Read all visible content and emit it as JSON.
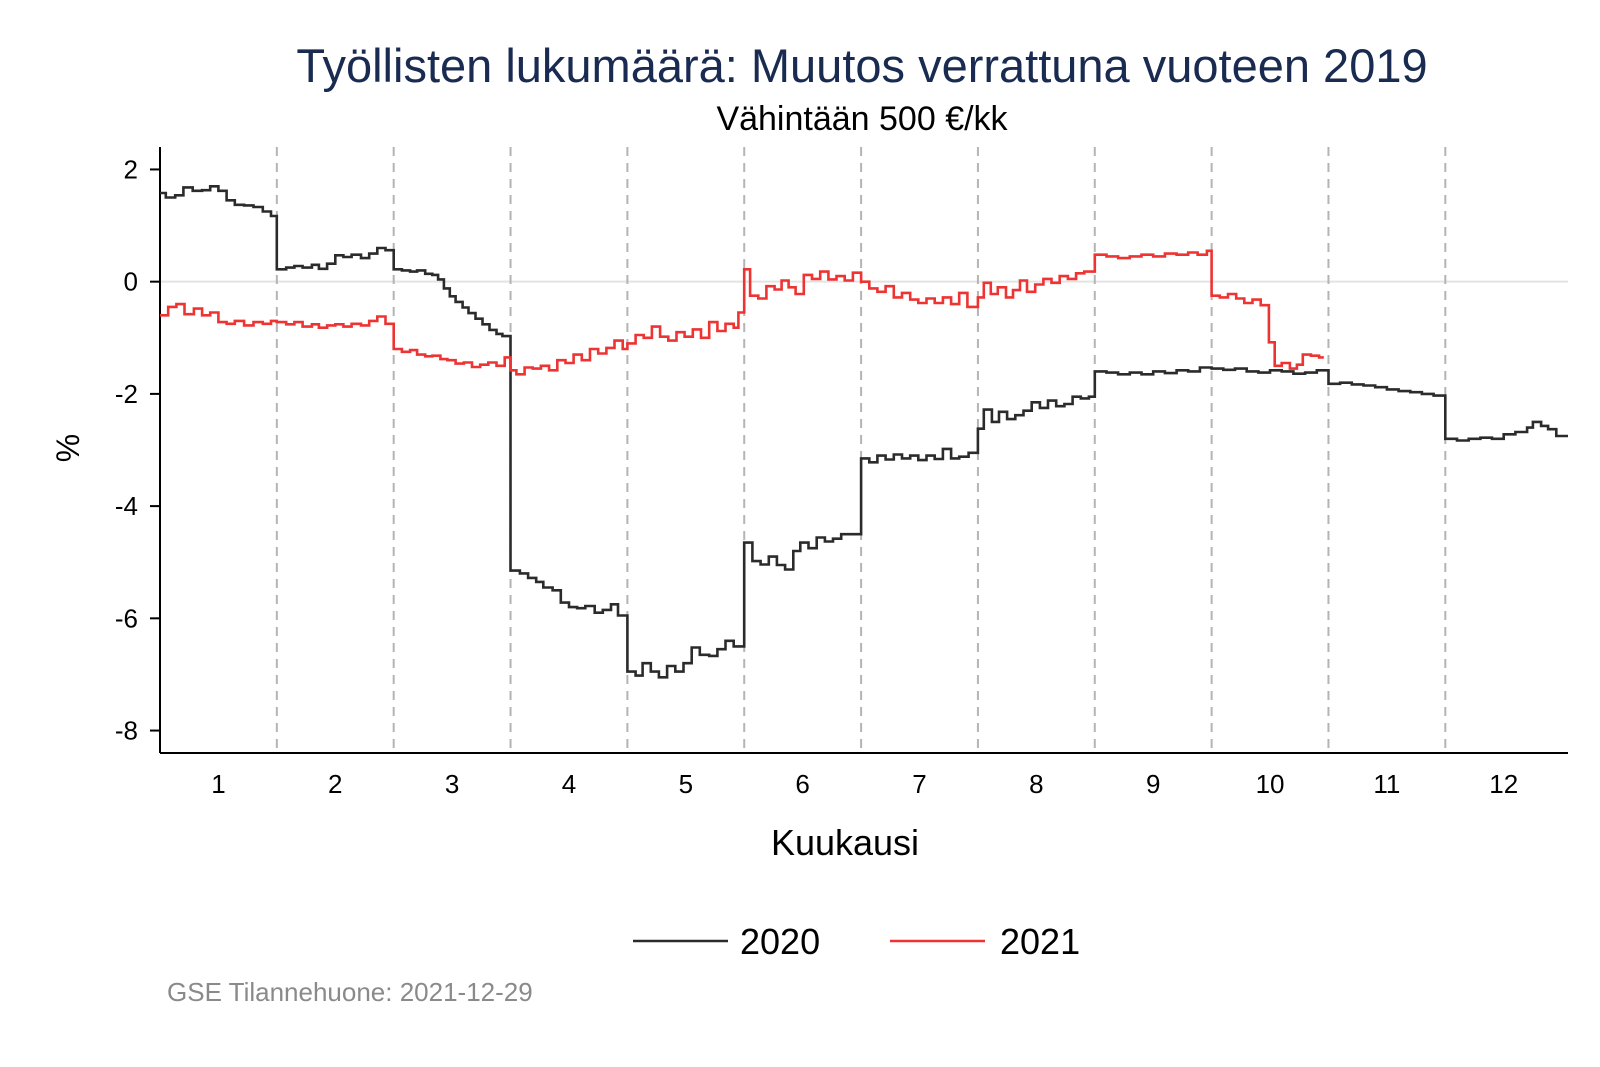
{
  "chart_data": {
    "type": "line",
    "title": "Työllisten lukumäärä: Muutos verrattuna vuoteen 2019",
    "subtitle": "Vähintään 500 €/kk",
    "xlabel": "Kuukausi",
    "ylabel": "%",
    "xlim": [
      0.5,
      12.55
    ],
    "ylim": [
      -8.4,
      2.4
    ],
    "x_ticks": [
      1,
      2,
      3,
      4,
      5,
      6,
      7,
      8,
      9,
      10,
      11,
      12
    ],
    "x_tick_labels": [
      "1",
      "2",
      "3",
      "4",
      "5",
      "6",
      "7",
      "8",
      "9",
      "10",
      "11",
      "12"
    ],
    "y_ticks": [
      2,
      0,
      -2,
      -4,
      -6,
      -8
    ],
    "y_tick_labels": [
      "2",
      "0",
      "-2",
      "-4",
      "-6",
      "-8"
    ],
    "month_separators": [
      1.5,
      2.5,
      3.5,
      4.5,
      5.5,
      6.5,
      7.5,
      8.5,
      9.5,
      10.5,
      11.5
    ],
    "zero_line": true,
    "line_style": "step",
    "legend_position": "bottom",
    "series": [
      {
        "name": "2020",
        "color": "#2b2b2b",
        "points": [
          [
            0.5,
            1.58
          ],
          [
            0.55,
            1.5
          ],
          [
            0.63,
            1.54
          ],
          [
            0.7,
            1.68
          ],
          [
            0.78,
            1.62
          ],
          [
            0.86,
            1.63
          ],
          [
            0.93,
            1.7
          ],
          [
            1.0,
            1.62
          ],
          [
            1.07,
            1.45
          ],
          [
            1.14,
            1.37
          ],
          [
            1.22,
            1.36
          ],
          [
            1.3,
            1.33
          ],
          [
            1.38,
            1.25
          ],
          [
            1.45,
            1.17
          ],
          [
            1.5,
            0.22
          ],
          [
            1.58,
            0.25
          ],
          [
            1.65,
            0.28
          ],
          [
            1.72,
            0.25
          ],
          [
            1.8,
            0.3
          ],
          [
            1.86,
            0.23
          ],
          [
            1.93,
            0.32
          ],
          [
            2.0,
            0.47
          ],
          [
            2.07,
            0.44
          ],
          [
            2.14,
            0.48
          ],
          [
            2.22,
            0.42
          ],
          [
            2.29,
            0.5
          ],
          [
            2.36,
            0.6
          ],
          [
            2.43,
            0.56
          ],
          [
            2.5,
            0.22
          ],
          [
            2.57,
            0.2
          ],
          [
            2.64,
            0.18
          ],
          [
            2.7,
            0.2
          ],
          [
            2.77,
            0.14
          ],
          [
            2.83,
            0.12
          ],
          [
            2.88,
            0.04
          ],
          [
            2.93,
            -0.12
          ],
          [
            2.98,
            -0.26
          ],
          [
            3.03,
            -0.36
          ],
          [
            3.09,
            -0.46
          ],
          [
            3.14,
            -0.56
          ],
          [
            3.2,
            -0.66
          ],
          [
            3.26,
            -0.76
          ],
          [
            3.32,
            -0.86
          ],
          [
            3.38,
            -0.93
          ],
          [
            3.43,
            -0.97
          ],
          [
            3.5,
            -5.15
          ],
          [
            3.58,
            -5.2
          ],
          [
            3.65,
            -5.28
          ],
          [
            3.72,
            -5.35
          ],
          [
            3.78,
            -5.45
          ],
          [
            3.86,
            -5.5
          ],
          [
            3.93,
            -5.72
          ],
          [
            4.0,
            -5.8
          ],
          [
            4.07,
            -5.82
          ],
          [
            4.14,
            -5.78
          ],
          [
            4.22,
            -5.9
          ],
          [
            4.29,
            -5.85
          ],
          [
            4.36,
            -5.75
          ],
          [
            4.42,
            -5.95
          ],
          [
            4.5,
            -6.95
          ],
          [
            4.57,
            -7.02
          ],
          [
            4.63,
            -6.8
          ],
          [
            4.7,
            -6.95
          ],
          [
            4.77,
            -7.05
          ],
          [
            4.84,
            -6.85
          ],
          [
            4.91,
            -6.95
          ],
          [
            4.98,
            -6.8
          ],
          [
            5.05,
            -6.52
          ],
          [
            5.12,
            -6.65
          ],
          [
            5.2,
            -6.67
          ],
          [
            5.27,
            -6.55
          ],
          [
            5.34,
            -6.4
          ],
          [
            5.41,
            -6.5
          ],
          [
            5.5,
            -4.65
          ],
          [
            5.57,
            -4.98
          ],
          [
            5.64,
            -5.04
          ],
          [
            5.71,
            -4.9
          ],
          [
            5.78,
            -5.05
          ],
          [
            5.85,
            -5.13
          ],
          [
            5.92,
            -4.8
          ],
          [
            5.98,
            -4.65
          ],
          [
            6.05,
            -4.75
          ],
          [
            6.12,
            -4.56
          ],
          [
            6.19,
            -4.63
          ],
          [
            6.26,
            -4.58
          ],
          [
            6.33,
            -4.5
          ],
          [
            6.42,
            -4.5
          ],
          [
            6.5,
            -3.15
          ],
          [
            6.57,
            -3.22
          ],
          [
            6.64,
            -3.1
          ],
          [
            6.71,
            -3.17
          ],
          [
            6.78,
            -3.08
          ],
          [
            6.85,
            -3.15
          ],
          [
            6.92,
            -3.1
          ],
          [
            6.99,
            -3.18
          ],
          [
            7.06,
            -3.1
          ],
          [
            7.13,
            -3.16
          ],
          [
            7.2,
            -2.98
          ],
          [
            7.27,
            -3.15
          ],
          [
            7.34,
            -3.12
          ],
          [
            7.42,
            -3.05
          ],
          [
            7.5,
            -2.62
          ],
          [
            7.55,
            -2.28
          ],
          [
            7.62,
            -2.5
          ],
          [
            7.68,
            -2.32
          ],
          [
            7.75,
            -2.45
          ],
          [
            7.82,
            -2.38
          ],
          [
            7.89,
            -2.3
          ],
          [
            7.96,
            -2.15
          ],
          [
            8.03,
            -2.25
          ],
          [
            8.1,
            -2.12
          ],
          [
            8.17,
            -2.22
          ],
          [
            8.24,
            -2.18
          ],
          [
            8.31,
            -2.05
          ],
          [
            8.38,
            -2.08
          ],
          [
            8.45,
            -2.05
          ],
          [
            8.5,
            -1.6
          ],
          [
            8.6,
            -1.62
          ],
          [
            8.7,
            -1.65
          ],
          [
            8.8,
            -1.62
          ],
          [
            8.9,
            -1.65
          ],
          [
            9.0,
            -1.6
          ],
          [
            9.1,
            -1.63
          ],
          [
            9.2,
            -1.58
          ],
          [
            9.3,
            -1.6
          ],
          [
            9.4,
            -1.53
          ],
          [
            9.5,
            -1.55
          ],
          [
            9.6,
            -1.57
          ],
          [
            9.7,
            -1.55
          ],
          [
            9.8,
            -1.6
          ],
          [
            9.9,
            -1.62
          ],
          [
            10.0,
            -1.58
          ],
          [
            10.1,
            -1.6
          ],
          [
            10.2,
            -1.64
          ],
          [
            10.3,
            -1.62
          ],
          [
            10.4,
            -1.58
          ],
          [
            10.5,
            -1.82
          ],
          [
            10.6,
            -1.8
          ],
          [
            10.7,
            -1.83
          ],
          [
            10.8,
            -1.85
          ],
          [
            10.9,
            -1.88
          ],
          [
            11.0,
            -1.92
          ],
          [
            11.1,
            -1.95
          ],
          [
            11.2,
            -1.97
          ],
          [
            11.3,
            -2.0
          ],
          [
            11.4,
            -2.03
          ],
          [
            11.5,
            -2.8
          ],
          [
            11.6,
            -2.83
          ],
          [
            11.7,
            -2.8
          ],
          [
            11.8,
            -2.78
          ],
          [
            11.9,
            -2.8
          ],
          [
            12.0,
            -2.72
          ],
          [
            12.1,
            -2.68
          ],
          [
            12.2,
            -2.6
          ],
          [
            12.25,
            -2.5
          ],
          [
            12.32,
            -2.57
          ],
          [
            12.38,
            -2.63
          ],
          [
            12.45,
            -2.75
          ],
          [
            12.55,
            -2.75
          ]
        ]
      },
      {
        "name": "2021",
        "color": "#ee3333",
        "points": [
          [
            0.5,
            -0.6
          ],
          [
            0.57,
            -0.45
          ],
          [
            0.64,
            -0.4
          ],
          [
            0.71,
            -0.58
          ],
          [
            0.79,
            -0.48
          ],
          [
            0.86,
            -0.6
          ],
          [
            0.93,
            -0.55
          ],
          [
            1.0,
            -0.72
          ],
          [
            1.07,
            -0.75
          ],
          [
            1.14,
            -0.7
          ],
          [
            1.22,
            -0.78
          ],
          [
            1.3,
            -0.72
          ],
          [
            1.38,
            -0.75
          ],
          [
            1.45,
            -0.7
          ],
          [
            1.5,
            -0.72
          ],
          [
            1.58,
            -0.76
          ],
          [
            1.65,
            -0.72
          ],
          [
            1.72,
            -0.8
          ],
          [
            1.8,
            -0.76
          ],
          [
            1.86,
            -0.82
          ],
          [
            1.93,
            -0.78
          ],
          [
            2.0,
            -0.76
          ],
          [
            2.07,
            -0.8
          ],
          [
            2.14,
            -0.75
          ],
          [
            2.22,
            -0.78
          ],
          [
            2.29,
            -0.7
          ],
          [
            2.36,
            -0.62
          ],
          [
            2.43,
            -0.75
          ],
          [
            2.5,
            -1.2
          ],
          [
            2.57,
            -1.25
          ],
          [
            2.64,
            -1.22
          ],
          [
            2.7,
            -1.3
          ],
          [
            2.77,
            -1.33
          ],
          [
            2.83,
            -1.32
          ],
          [
            2.9,
            -1.38
          ],
          [
            2.96,
            -1.4
          ],
          [
            3.03,
            -1.46
          ],
          [
            3.1,
            -1.44
          ],
          [
            3.17,
            -1.52
          ],
          [
            3.24,
            -1.48
          ],
          [
            3.31,
            -1.44
          ],
          [
            3.38,
            -1.5
          ],
          [
            3.45,
            -1.35
          ],
          [
            3.5,
            -1.58
          ],
          [
            3.55,
            -1.65
          ],
          [
            3.62,
            -1.53
          ],
          [
            3.69,
            -1.55
          ],
          [
            3.76,
            -1.5
          ],
          [
            3.83,
            -1.58
          ],
          [
            3.9,
            -1.4
          ],
          [
            3.97,
            -1.45
          ],
          [
            4.04,
            -1.3
          ],
          [
            4.11,
            -1.4
          ],
          [
            4.18,
            -1.2
          ],
          [
            4.25,
            -1.28
          ],
          [
            4.32,
            -1.18
          ],
          [
            4.39,
            -1.05
          ],
          [
            4.46,
            -1.2
          ],
          [
            4.5,
            -1.1
          ],
          [
            4.57,
            -0.95
          ],
          [
            4.64,
            -1.0
          ],
          [
            4.71,
            -0.8
          ],
          [
            4.78,
            -0.98
          ],
          [
            4.85,
            -1.05
          ],
          [
            4.92,
            -0.9
          ],
          [
            4.99,
            -0.98
          ],
          [
            5.06,
            -0.85
          ],
          [
            5.13,
            -1.0
          ],
          [
            5.2,
            -0.72
          ],
          [
            5.27,
            -0.88
          ],
          [
            5.34,
            -0.75
          ],
          [
            5.41,
            -0.82
          ],
          [
            5.45,
            -0.55
          ],
          [
            5.5,
            0.22
          ],
          [
            5.55,
            -0.25
          ],
          [
            5.62,
            -0.3
          ],
          [
            5.69,
            -0.08
          ],
          [
            5.76,
            -0.14
          ],
          [
            5.82,
            0.02
          ],
          [
            5.88,
            -0.1
          ],
          [
            5.94,
            -0.22
          ],
          [
            6.01,
            0.12
          ],
          [
            6.08,
            0.05
          ],
          [
            6.15,
            0.18
          ],
          [
            6.22,
            0.04
          ],
          [
            6.29,
            0.1
          ],
          [
            6.36,
            0.02
          ],
          [
            6.43,
            0.16
          ],
          [
            6.5,
            0.0
          ],
          [
            6.57,
            -0.12
          ],
          [
            6.64,
            -0.18
          ],
          [
            6.71,
            -0.08
          ],
          [
            6.78,
            -0.28
          ],
          [
            6.85,
            -0.2
          ],
          [
            6.92,
            -0.32
          ],
          [
            6.99,
            -0.38
          ],
          [
            7.06,
            -0.3
          ],
          [
            7.13,
            -0.38
          ],
          [
            7.2,
            -0.28
          ],
          [
            7.27,
            -0.4
          ],
          [
            7.34,
            -0.2
          ],
          [
            7.41,
            -0.45
          ],
          [
            7.5,
            -0.28
          ],
          [
            7.55,
            -0.02
          ],
          [
            7.61,
            -0.22
          ],
          [
            7.67,
            -0.1
          ],
          [
            7.74,
            -0.28
          ],
          [
            7.8,
            -0.15
          ],
          [
            7.86,
            0.02
          ],
          [
            7.92,
            -0.18
          ],
          [
            7.99,
            -0.05
          ],
          [
            8.06,
            0.05
          ],
          [
            8.13,
            -0.02
          ],
          [
            8.2,
            0.1
          ],
          [
            8.27,
            0.05
          ],
          [
            8.34,
            0.15
          ],
          [
            8.41,
            0.18
          ],
          [
            8.5,
            0.48
          ],
          [
            8.6,
            0.45
          ],
          [
            8.7,
            0.42
          ],
          [
            8.8,
            0.45
          ],
          [
            8.9,
            0.48
          ],
          [
            9.0,
            0.45
          ],
          [
            9.1,
            0.5
          ],
          [
            9.2,
            0.48
          ],
          [
            9.3,
            0.52
          ],
          [
            9.38,
            0.48
          ],
          [
            9.46,
            0.55
          ],
          [
            9.5,
            -0.25
          ],
          [
            9.57,
            -0.28
          ],
          [
            9.64,
            -0.22
          ],
          [
            9.71,
            -0.3
          ],
          [
            9.78,
            -0.38
          ],
          [
            9.85,
            -0.32
          ],
          [
            9.92,
            -0.42
          ],
          [
            9.99,
            -1.08
          ],
          [
            10.04,
            -1.5
          ],
          [
            10.1,
            -1.45
          ],
          [
            10.17,
            -1.55
          ],
          [
            10.23,
            -1.48
          ],
          [
            10.28,
            -1.3
          ],
          [
            10.35,
            -1.32
          ],
          [
            10.42,
            -1.35
          ],
          [
            10.46,
            -1.35
          ]
        ]
      }
    ]
  },
  "footer": {
    "source": "GSE Tilannehuone: 2021-12-29"
  }
}
